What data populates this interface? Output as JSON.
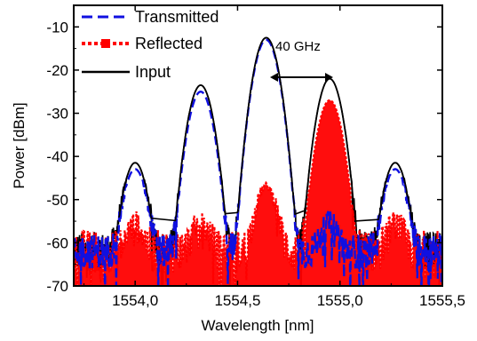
{
  "chart_data": {
    "type": "line",
    "xlabel": "Wavelength [nm]",
    "ylabel": "Power [dBm]",
    "xlim": [
      1553.7,
      1555.5
    ],
    "ylim": [
      -70,
      -5
    ],
    "x_ticks": [
      1554.0,
      1554.5,
      1555.0,
      1555.5
    ],
    "x_tick_labels": [
      "1554,0",
      "1554,5",
      "1555,0",
      "1555,5"
    ],
    "y_ticks": [
      -10,
      -20,
      -30,
      -40,
      -50,
      -60,
      -70
    ],
    "y_tick_labels": [
      "-10",
      "-20",
      "-30",
      "-40",
      "-50",
      "-60",
      "-70"
    ],
    "grid": false,
    "legend_position": "top-left",
    "annotation": {
      "text": "40 GHz",
      "x_start": 1554.65,
      "x_end": 1554.94,
      "y": -22
    },
    "noise_floor_dbm": -62,
    "series": [
      {
        "name": "Transmitted",
        "style": "dashed",
        "color": "#1010e0",
        "peaks": [
          {
            "x": 1554.0,
            "y": -43
          },
          {
            "x": 1554.32,
            "y": -25
          },
          {
            "x": 1554.64,
            "y": -13
          },
          {
            "x": 1554.95,
            "y": -56
          },
          {
            "x": 1555.27,
            "y": -43
          }
        ]
      },
      {
        "name": "Reflected",
        "style": "dotted",
        "color": "#ff0000",
        "peaks": [
          {
            "x": 1554.0,
            "y": -57
          },
          {
            "x": 1554.32,
            "y": -57
          },
          {
            "x": 1554.64,
            "y": -47
          },
          {
            "x": 1554.95,
            "y": -27
          },
          {
            "x": 1555.27,
            "y": -57
          }
        ]
      },
      {
        "name": "Input",
        "style": "solid",
        "color": "#000000",
        "peaks": [
          {
            "x": 1554.0,
            "y": -41.5
          },
          {
            "x": 1554.32,
            "y": -23.5
          },
          {
            "x": 1554.64,
            "y": -12.5
          },
          {
            "x": 1554.95,
            "y": -22
          },
          {
            "x": 1555.27,
            "y": -41.5
          }
        ]
      }
    ]
  }
}
